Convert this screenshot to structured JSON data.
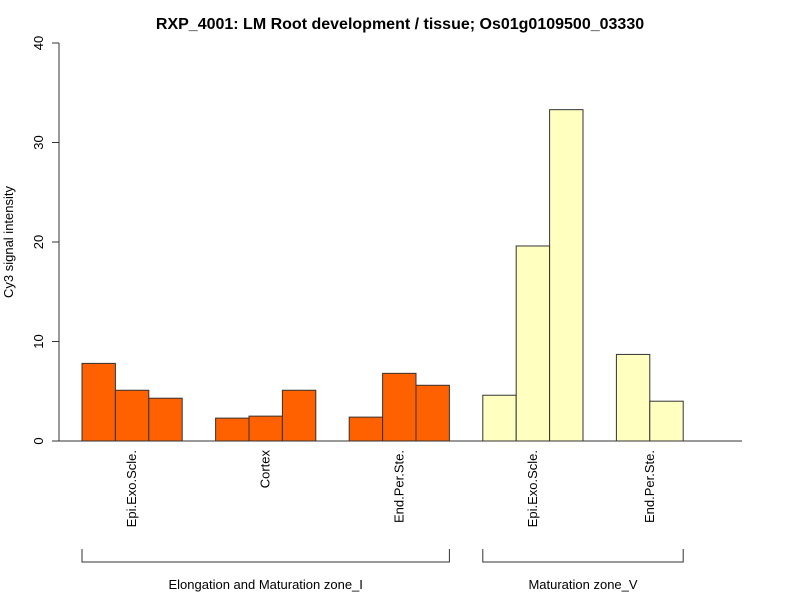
{
  "chart_data": {
    "type": "bar",
    "title": "RXP_4001: LM Root development / tissue; Os01g0109500_03330",
    "ylabel": "Cy3 signal intensity",
    "xlabel": "",
    "ylim": [
      0,
      40
    ],
    "yticks": [
      0,
      10,
      20,
      30,
      40
    ],
    "grid": false,
    "colors": {
      "zone_I": "#FF6000",
      "zone_V": "#FFFFC0"
    },
    "groups": [
      {
        "label": "Epi.Exo.Scle.",
        "zone": "zone_I",
        "values": [
          7.8,
          5.1,
          4.3
        ]
      },
      {
        "label": "Cortex",
        "zone": "zone_I",
        "values": [
          2.3,
          2.5,
          5.1
        ]
      },
      {
        "label": "End.Per.Ste.",
        "zone": "zone_I",
        "values": [
          2.4,
          6.8,
          5.6
        ]
      },
      {
        "label": "Epi.Exo.Scle.",
        "zone": "zone_V",
        "values": [
          4.6,
          19.6,
          33.3
        ]
      },
      {
        "label": "End.Per.Ste.",
        "zone": "zone_V",
        "values": [
          8.7,
          4.0
        ]
      }
    ],
    "zones": [
      {
        "id": "zone_I",
        "label": "Elongation and Maturation zone_I"
      },
      {
        "id": "zone_V",
        "label": "Maturation zone_V"
      }
    ]
  }
}
